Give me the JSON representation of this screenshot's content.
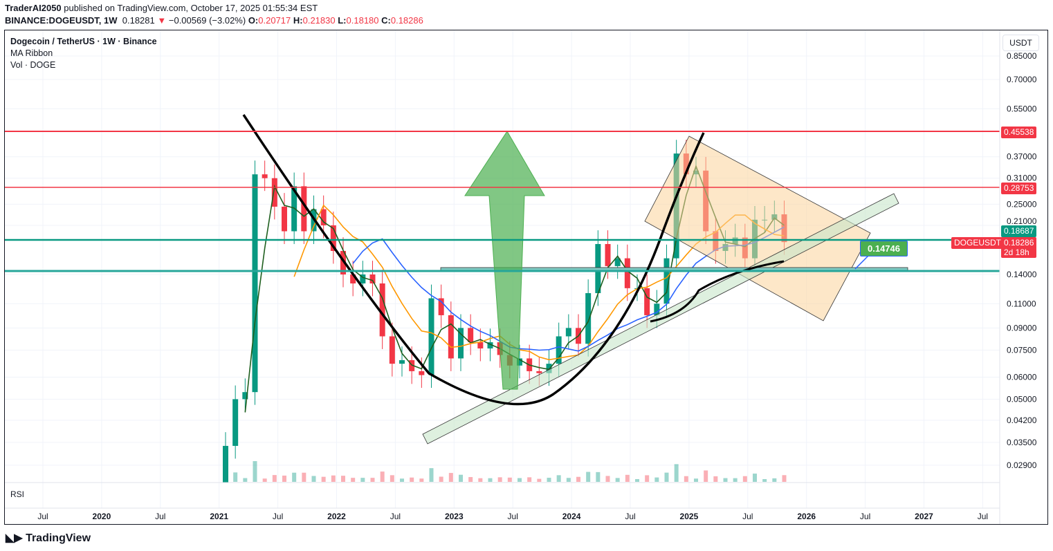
{
  "header": {
    "author": "TraderAI2050",
    "published": "published on TradingView.com, October 17, 2025 01:55:34 EST",
    "symbol": "BINANCE:DOGEUSDT, 1W",
    "last": "0.18281",
    "change": "−0.00569 (−3.02%)",
    "o_label": "O:",
    "o": "0.20717",
    "h_label": "H:",
    "h": "0.21830",
    "l_label": "L:",
    "l": "0.18180",
    "c_label": "C:",
    "c": "0.18286"
  },
  "legend": {
    "title": "Dogecoin / TetherUS · 1W · Binance",
    "ma": "MA Ribbon",
    "vol": "Vol · DOGE"
  },
  "rsi_label": "RSI",
  "currency_button": "USDT",
  "price_tags": {
    "r1": "0.45538",
    "r2": "0.28753",
    "g1": "0.18687",
    "symbol": "DOGEUSDT",
    "last": "0.18286",
    "countdown": "2d 18h",
    "target": "0.14746"
  },
  "brand": "TradingView",
  "colors": {
    "up": "#089981",
    "down": "#f23645",
    "ma_fast": "#1e5f1e",
    "ma_mid": "#ff9800",
    "ma_slow": "#2962ff",
    "resistance": "#f23645",
    "support": "#089981"
  },
  "chart_data": {
    "type": "candlestick",
    "yscale": "log",
    "ylim": [
      0.026,
      0.9
    ],
    "y_ticks": [
      "0.85000",
      "0.70000",
      "0.55000",
      "0.37000",
      "0.31000",
      "0.25000",
      "0.21000",
      "0.14000",
      "0.11000",
      "0.09000",
      "0.07500",
      "0.06000",
      "0.05000",
      "0.04200",
      "0.03500",
      "0.02900"
    ],
    "x_ticks": [
      "Jul",
      "2020",
      "Jul",
      "2021",
      "Jul",
      "2022",
      "Jul",
      "2023",
      "Jul",
      "2024",
      "Jul",
      "2025",
      "Jul",
      "2026",
      "Jul",
      "2027",
      "Jul"
    ],
    "horizontal_levels": [
      0.45538,
      0.28753,
      0.18687,
      0.14
    ],
    "monthly_closes_from_2021_01": [
      0.034,
      0.05,
      0.053,
      0.32,
      0.31,
      0.245,
      0.2,
      0.29,
      0.2,
      0.24,
      0.21,
      0.17,
      0.14,
      0.13,
      0.14,
      0.13,
      0.084,
      0.067,
      0.069,
      0.063,
      0.061,
      0.115,
      0.1,
      0.07,
      0.09,
      0.08,
      0.076,
      0.08,
      0.072,
      0.066,
      0.07,
      0.063,
      0.062,
      0.067,
      0.084,
      0.09,
      0.079,
      0.12,
      0.18,
      0.15,
      0.16,
      0.125,
      0.125,
      0.1,
      0.11,
      0.16,
      0.38,
      0.32,
      0.33,
      0.2,
      0.17,
      0.18,
      0.19,
      0.16,
      0.22,
      0.22,
      0.23,
      0.18286
    ],
    "annotations": [
      "cup and handle curve",
      "ascending channel",
      "descending channel (orange)",
      "green up arrow"
    ]
  }
}
